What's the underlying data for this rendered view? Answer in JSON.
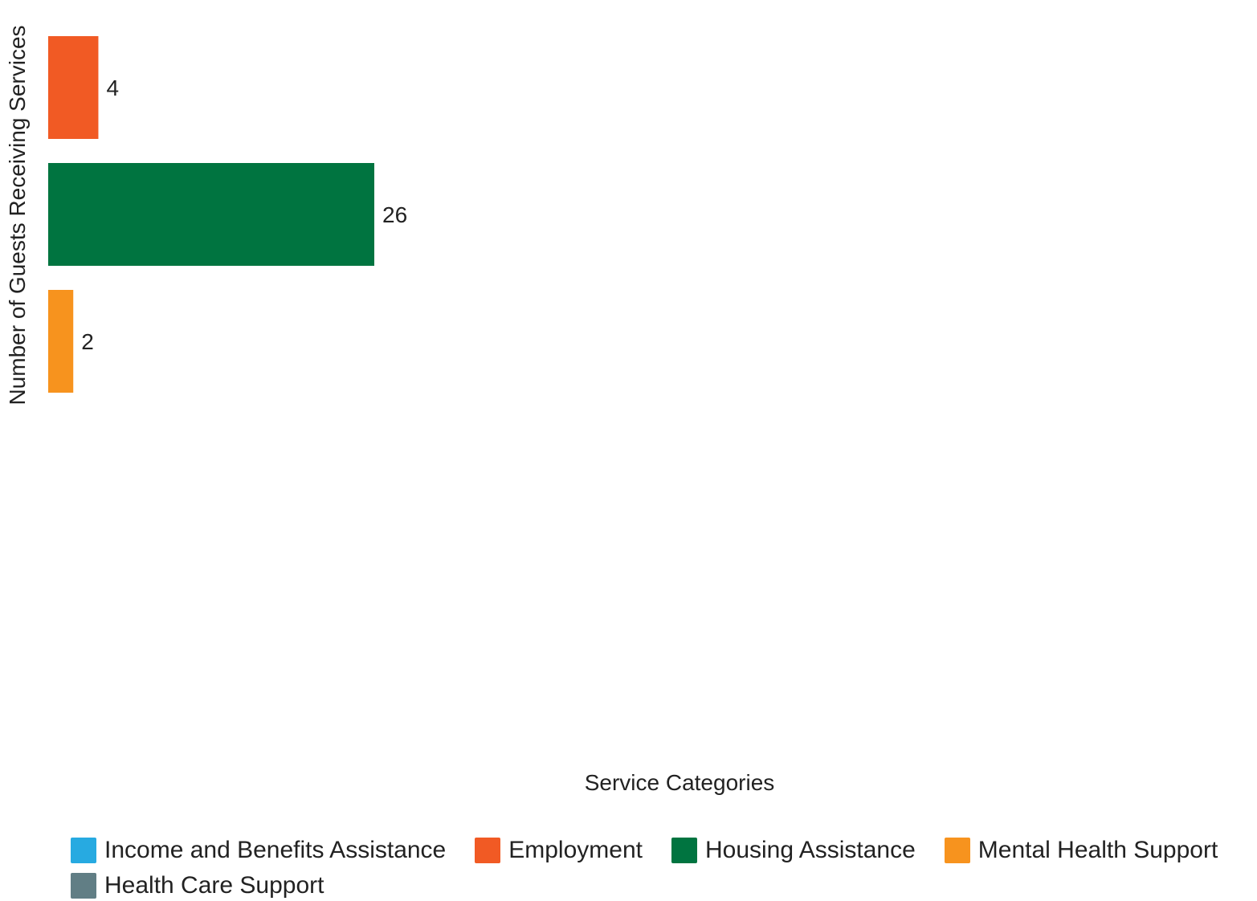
{
  "chart_data": {
    "type": "bar",
    "orientation": "horizontal",
    "categories": [
      "Employment",
      "Housing Assistance",
      "Mental Health Support"
    ],
    "values": [
      4,
      26,
      2
    ],
    "colors": [
      "#f15a24",
      "#007440",
      "#f7931e"
    ],
    "data_labels": [
      "4",
      "26",
      "2"
    ],
    "ylabel": "Number of Guests Receiving Services",
    "xlabel": "Service Categories",
    "legend": [
      {
        "label": "Income and Benefits Assistance",
        "color": "#27aae1"
      },
      {
        "label": "Employment",
        "color": "#f15a24"
      },
      {
        "label": "Housing Assistance",
        "color": "#007440"
      },
      {
        "label": "Mental Health Support",
        "color": "#f7931e"
      },
      {
        "label": "Health Care Support",
        "color": "#617e85"
      }
    ],
    "legend_position": "bottom",
    "grid": false
  }
}
